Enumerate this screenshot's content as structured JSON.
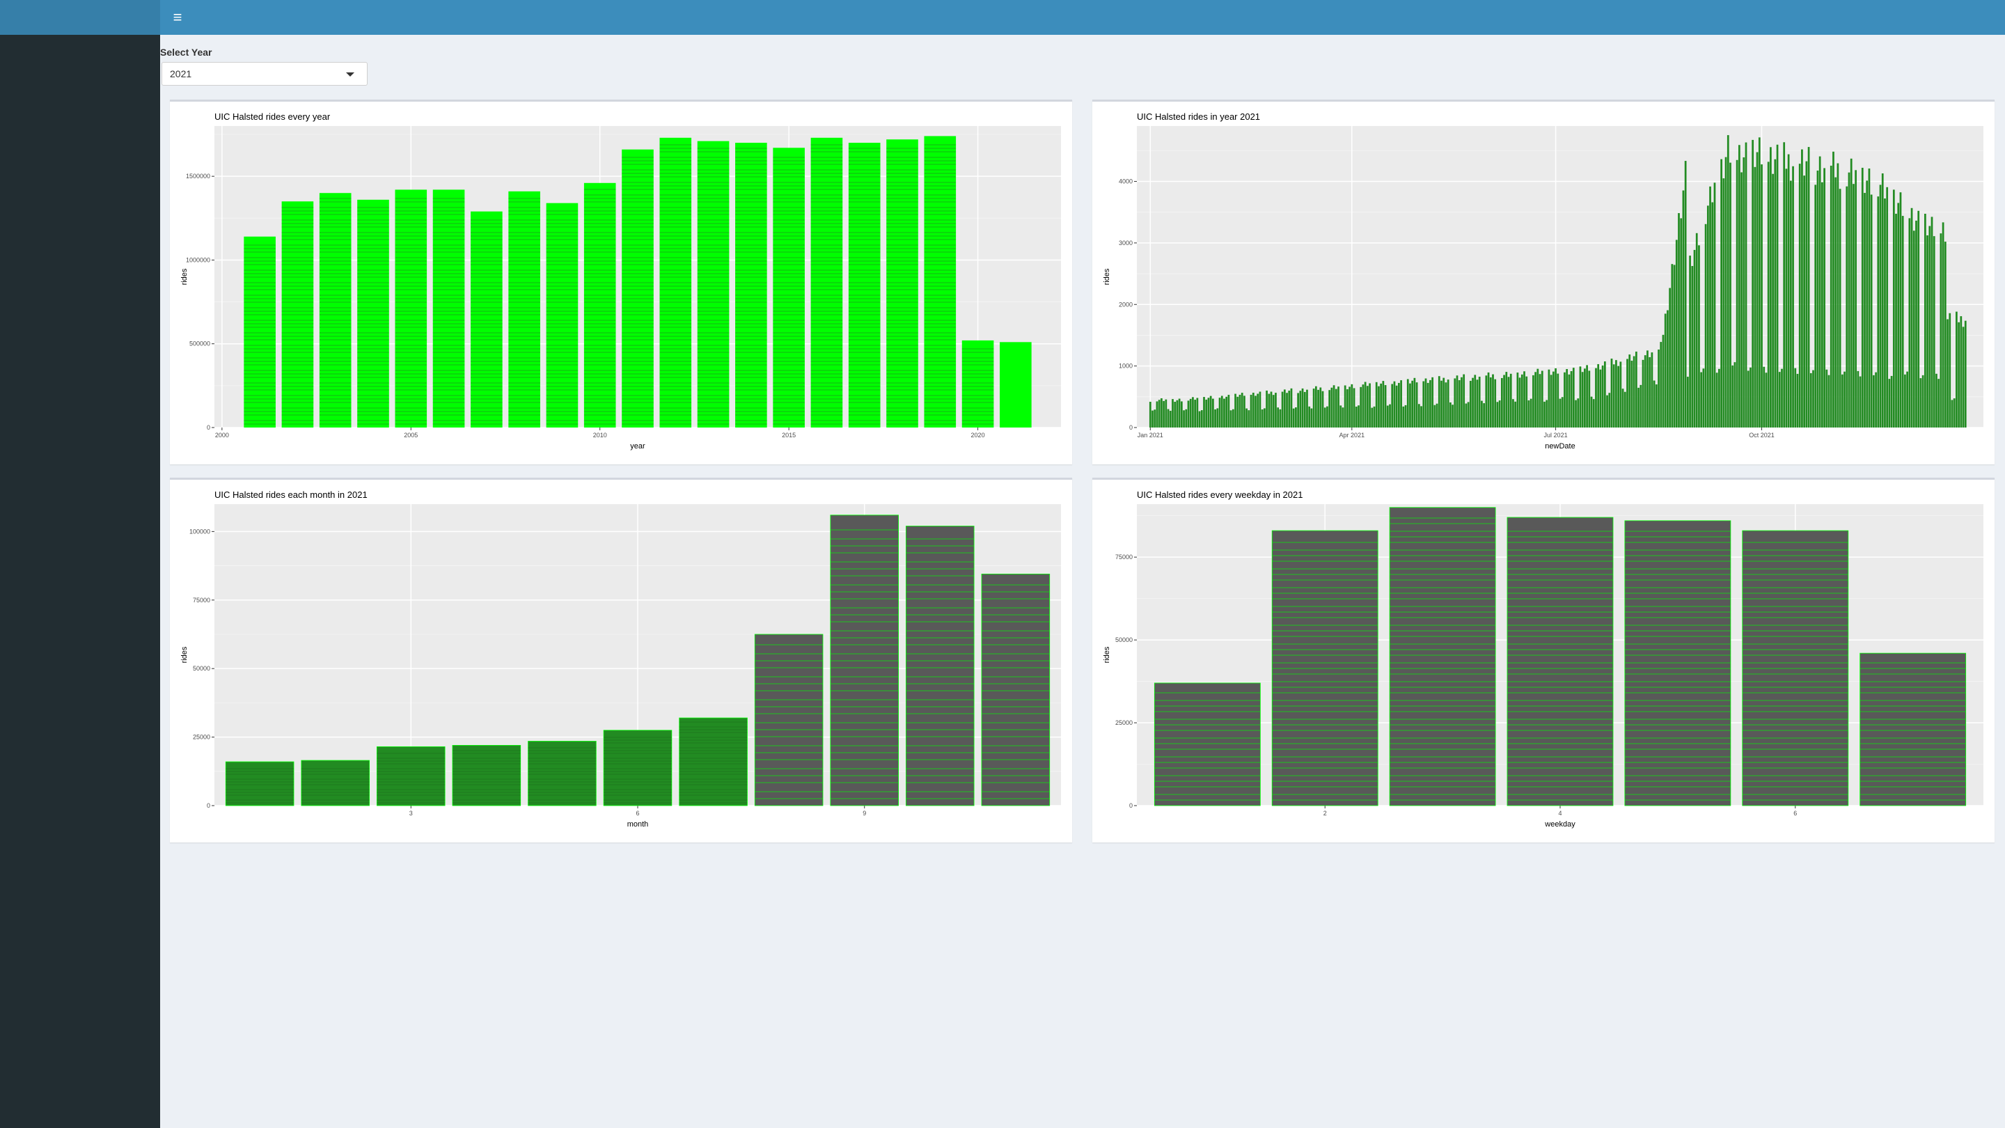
{
  "header": {
    "menu_icon": "hamburger-icon",
    "menu_glyph": "≡",
    "brand_color": "#3c8dbc"
  },
  "controls": {
    "select_label": "Select Year",
    "selected_year": "2021"
  },
  "colors": {
    "bright_green": "#00ff00",
    "dark_green": "#228b22",
    "gray_bar": "#595959",
    "panel_bg": "#ebebeb"
  },
  "chart_data": [
    {
      "type": "bar",
      "title": "UIC Halsted rides every year",
      "xlabel": "year",
      "ylabel": "rides",
      "x": [
        2001,
        2002,
        2003,
        2004,
        2005,
        2006,
        2007,
        2008,
        2009,
        2010,
        2011,
        2012,
        2013,
        2014,
        2015,
        2016,
        2017,
        2018,
        2019,
        2020,
        2021
      ],
      "values": [
        1140000,
        1350000,
        1400000,
        1360000,
        1420000,
        1420000,
        1290000,
        1410000,
        1340000,
        1460000,
        1660000,
        1730000,
        1710000,
        1700000,
        1670000,
        1730000,
        1700000,
        1720000,
        1740000,
        520000,
        510000
      ],
      "xticks": [
        2000,
        2005,
        2010,
        2015,
        2020
      ],
      "yticks": [
        0,
        500000,
        1000000,
        1500000
      ],
      "ylim": [
        0,
        1800000
      ],
      "grid": true
    },
    {
      "type": "bar",
      "title": "UIC Halsted rides in year 2021",
      "xlabel": "newDate",
      "ylabel": "rides",
      "x_range": [
        "Jan 2021",
        "Dec 2021"
      ],
      "xticks": [
        "Jan 2021",
        "Apr 2021",
        "Jul 2021",
        "Oct 2021"
      ],
      "yticks": [
        0,
        1000,
        2000,
        3000,
        4000
      ],
      "ylim": [
        0,
        4900
      ],
      "daily_pattern": {
        "weekday_levels": [
          {
            "month": "Jan",
            "rides": 450
          },
          {
            "month": "Apr",
            "rides": 720
          },
          {
            "month": "Jul",
            "rides": 950
          },
          {
            "month": "Aug",
            "rides": 1250
          },
          {
            "month": "Sep",
            "rides": 4500
          },
          {
            "month": "Oct",
            "rides": 4300
          },
          {
            "month": "Nov",
            "rides": 4100
          },
          {
            "month": "Dec",
            "rides": 3200
          }
        ],
        "weekend_levels": [
          {
            "month": "Jan",
            "rides": 280
          },
          {
            "month": "Apr",
            "rides": 350
          },
          {
            "month": "Jul",
            "rides": 480
          },
          {
            "month": "Sep",
            "rides": 1000
          },
          {
            "month": "Nov",
            "rides": 850
          }
        ]
      },
      "grid": true
    },
    {
      "type": "bar",
      "title": "UIC Halsted rides each month in 2021",
      "xlabel": "month",
      "ylabel": "rides",
      "x": [
        1,
        2,
        3,
        4,
        5,
        6,
        7,
        8,
        9,
        10,
        11
      ],
      "values": [
        16000,
        16500,
        21500,
        22000,
        23500,
        27500,
        32000,
        62500,
        106000,
        102000,
        84500
      ],
      "xticks": [
        3,
        6,
        9
      ],
      "yticks": [
        0,
        25000,
        50000,
        75000,
        100000
      ],
      "ylim": [
        0,
        110000
      ],
      "grid": true
    },
    {
      "type": "bar",
      "title": "UIC Halsted rides every weekday in 2021",
      "xlabel": "weekday",
      "ylabel": "rides",
      "x": [
        1,
        2,
        3,
        4,
        5,
        6,
        7
      ],
      "values": [
        37000,
        83000,
        90000,
        87000,
        86000,
        83000,
        46000
      ],
      "xticks": [
        2,
        4,
        6
      ],
      "yticks": [
        0,
        25000,
        50000,
        75000
      ],
      "ylim": [
        0,
        91000
      ],
      "grid": true
    }
  ]
}
